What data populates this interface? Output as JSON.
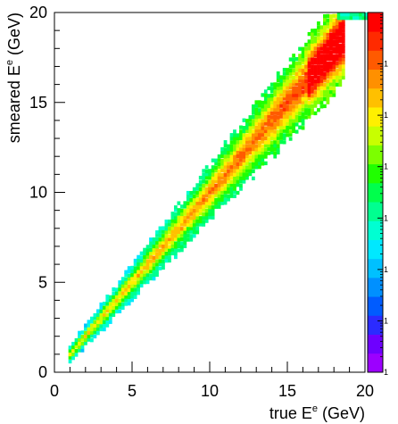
{
  "chart_data": {
    "type": "heatmap",
    "title": "",
    "x_axis": {
      "title_base": "true E",
      "title_sup": "e",
      "title_unit": " (GeV)",
      "range": [
        0,
        20
      ],
      "ticks": [
        0,
        5,
        10,
        15,
        20
      ],
      "tick_labels": [
        "0",
        "5",
        "10",
        "15",
        "20"
      ]
    },
    "y_axis": {
      "title_base": "smeared E",
      "title_sup": "e",
      "title_unit": " (GeV)",
      "range": [
        0,
        20
      ],
      "ticks": [
        0,
        5,
        10,
        15,
        20
      ],
      "tick_labels": [
        "0",
        "5",
        "10",
        "15",
        "20"
      ]
    },
    "color_scale": {
      "scale": "log",
      "labels": [
        "1",
        "1",
        "1",
        "1",
        "1",
        "1",
        "1"
      ],
      "palette": [
        "#9c00ff",
        "#6e00ff",
        "#2b2bff",
        "#005cff",
        "#0090ff",
        "#00c0ff",
        "#00e8ff",
        "#00ffd2",
        "#00ff90",
        "#00ff4c",
        "#20ff00",
        "#7cff00",
        "#c8ff00",
        "#fff000",
        "#ffc000",
        "#ff9000",
        "#ff5a00",
        "#ff2a00",
        "#ff0000"
      ]
    },
    "distribution": {
      "description_free": true,
      "x_min": 0.9,
      "x_max": 18.6,
      "relation": "y = x",
      "peak_at_x": 17.5
    },
    "grid": false,
    "legend": "none"
  }
}
